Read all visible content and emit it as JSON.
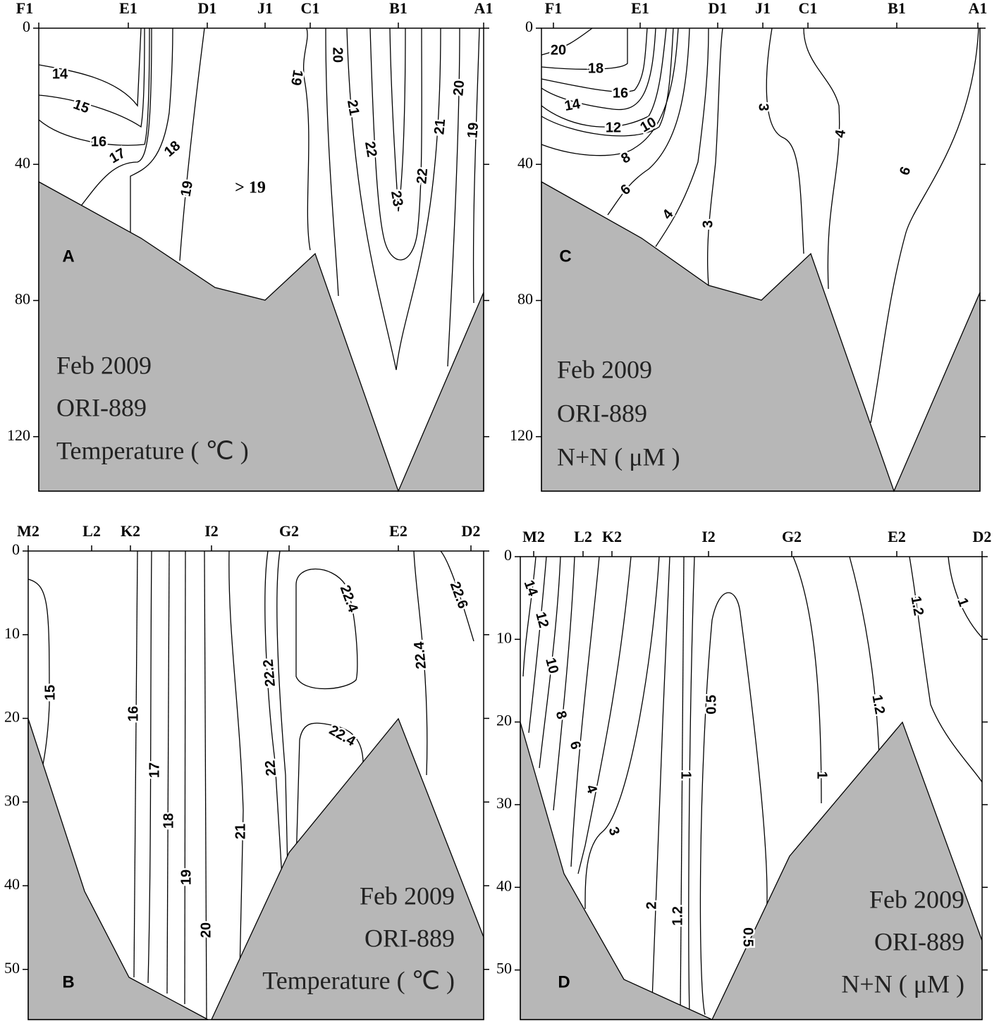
{
  "chart_data": [
    {
      "type": "contour",
      "panel": "A",
      "categories": [
        "F1",
        "E1",
        "D1",
        "J1",
        "C1",
        "B1",
        "A1"
      ],
      "ylim": [
        0,
        136
      ],
      "yticks": [
        0,
        40,
        80,
        120
      ],
      "contour_labels": [
        14,
        15,
        16,
        17,
        18,
        19,
        19,
        20,
        22,
        22,
        23,
        21,
        21,
        20,
        19
      ],
      "region_label": "> 19",
      "annotations": [
        "Feb 2009",
        "ORI-889",
        "Temperature ( ℃ )"
      ]
    },
    {
      "type": "contour",
      "panel": "C",
      "categories": [
        "F1",
        "E1",
        "D1",
        "J1",
        "C1",
        "B1",
        "A1"
      ],
      "ylim": [
        0,
        136
      ],
      "yticks": [
        0,
        40,
        80,
        120
      ],
      "contour_labels": [
        20,
        18,
        16,
        14,
        12,
        10,
        8,
        6,
        4,
        3,
        3,
        4,
        6
      ],
      "annotations": [
        "Feb 2009",
        "ORI-889",
        "N+N ( μM )"
      ]
    },
    {
      "type": "contour",
      "panel": "B",
      "categories": [
        "M2",
        "L2",
        "K2",
        "I2",
        "G2",
        "E2",
        "D2"
      ],
      "ylim": [
        0,
        56
      ],
      "yticks": [
        0,
        10,
        20,
        30,
        40,
        50
      ],
      "contour_labels": [
        15,
        16,
        17,
        18,
        19,
        20,
        21,
        22,
        22.2,
        22.4,
        22.4,
        22.4,
        22.6
      ],
      "annotations": [
        "Feb 2009",
        "ORI-889",
        "Temperature ( ℃ )"
      ]
    },
    {
      "type": "contour",
      "panel": "D",
      "categories": [
        "M2",
        "L2",
        "K2",
        "I2",
        "G2",
        "E2",
        "D2"
      ],
      "ylim": [
        0,
        56
      ],
      "yticks": [
        0,
        10,
        20,
        30,
        40,
        50
      ],
      "contour_labels": [
        14,
        12,
        10,
        8,
        6,
        4,
        3,
        2,
        1.2,
        1,
        0.5,
        0.5,
        1,
        1.2,
        1.2,
        1
      ],
      "annotations": [
        "Feb 2009",
        "ORI-889",
        "N+N ( μM )"
      ]
    }
  ]
}
